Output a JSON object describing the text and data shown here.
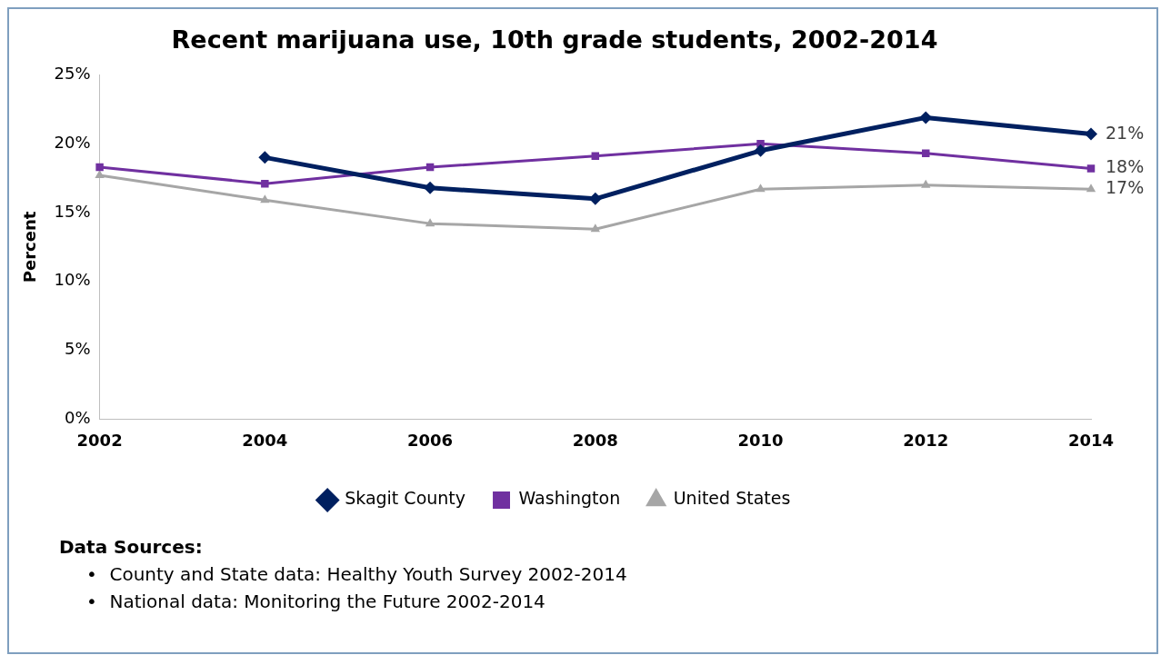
{
  "chart_data": {
    "type": "line",
    "title": "Recent marijuana use, 10th grade students, 2002-2014",
    "ylabel": "Percent",
    "categories": [
      "2002",
      "2004",
      "2006",
      "2008",
      "2010",
      "2012",
      "2014"
    ],
    "series": [
      {
        "name": "Skagit County",
        "color": "#002060",
        "marker": "diamond",
        "values": [
          null,
          19.0,
          16.8,
          16.0,
          19.5,
          21.9,
          20.7
        ],
        "value_labels": [
          null,
          null,
          null,
          null,
          null,
          null,
          "21%"
        ]
      },
      {
        "name": "Washington",
        "color": "#7030a0",
        "marker": "square",
        "values": [
          18.3,
          17.1,
          18.3,
          19.1,
          20.0,
          19.3,
          18.2
        ],
        "value_labels": [
          null,
          null,
          null,
          null,
          null,
          null,
          "18%"
        ]
      },
      {
        "name": "United States",
        "color": "#a6a6a6",
        "marker": "triangle",
        "values": [
          17.7,
          15.9,
          14.2,
          13.8,
          16.7,
          17.0,
          16.7
        ],
        "value_labels": [
          null,
          null,
          null,
          null,
          null,
          null,
          "17%"
        ]
      }
    ],
    "ylim": [
      0,
      25
    ],
    "yticks": [
      {
        "value": 0,
        "label": "0%"
      },
      {
        "value": 5,
        "label": "5%"
      },
      {
        "value": 10,
        "label": "10%"
      },
      {
        "value": 15,
        "label": "15%"
      },
      {
        "value": 20,
        "label": "20%"
      },
      {
        "value": 25,
        "label": "25%"
      }
    ],
    "grid": false,
    "legend": "bottom",
    "line_style": "solid",
    "annotations": [
      "Data Sources:",
      "•\tCounty and State data: Healthy Youth Survey 2002-2014",
      "•\tNational data: Monitoring the Future 2002-2014"
    ]
  }
}
